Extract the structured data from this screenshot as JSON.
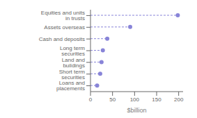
{
  "chart_data": {
    "type": "lollipop",
    "orientation": "horizontal",
    "categories": [
      "Loans and placements",
      "Short term securities",
      "Land and buildings",
      "Long term securities",
      "Cash and deposits",
      "Assets overseas",
      "Equities and units in trusts"
    ],
    "values": [
      15,
      22,
      25,
      28,
      38,
      90,
      198
    ],
    "xlabel": "$billion",
    "xlim": [
      0,
      210
    ],
    "xticks": [
      0,
      50,
      100,
      150,
      200
    ],
    "marker": "circle",
    "line_style": "dashed",
    "grid": false
  }
}
